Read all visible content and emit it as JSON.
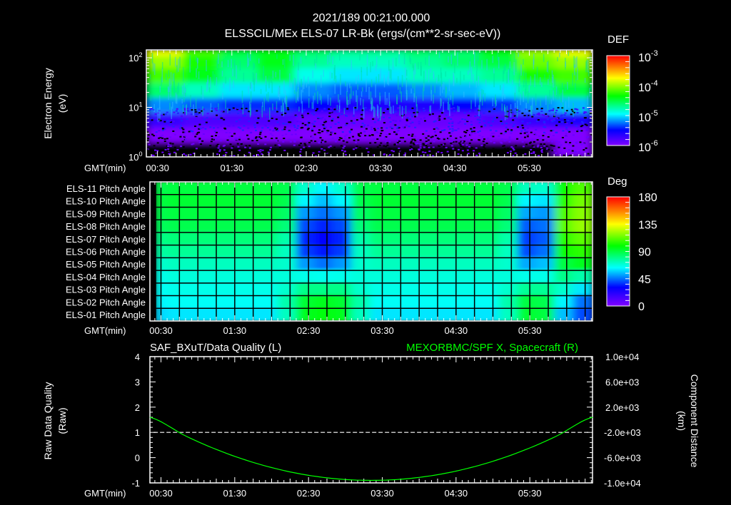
{
  "header": {
    "datetime": "2021/189 00:21:00.000",
    "title": "ELSSCIL/MEx ELS-07 LR-Bk  (ergs/(cm**2-sr-sec-eV))"
  },
  "time_axis": {
    "label": "GMT(min)",
    "start_minutes": 21,
    "end_minutes": 381,
    "tick_labels": [
      "00:30",
      "01:30",
      "02:30",
      "03:30",
      "04:30",
      "05:30"
    ],
    "tick_minutes": [
      30,
      90,
      150,
      210,
      270,
      330
    ]
  },
  "chart_data": [
    {
      "type": "heatmap",
      "name": "electron-spectrogram",
      "title": "ELSSCIL/MEx ELS-07 LR-Bk  (ergs/(cm**2-sr-sec-eV))",
      "ylabel": "Electron Energy",
      "ylabel_units": "(eV)",
      "yscale": "log",
      "ylim": [
        1,
        145
      ],
      "ytick_labels": [
        {
          "base": "10",
          "exp": "0",
          "value": 1
        },
        {
          "base": "10",
          "exp": "1",
          "value": 10
        },
        {
          "base": "10",
          "exp": "2",
          "value": 100
        }
      ],
      "energy_bin_edges_eV": [
        1,
        2,
        4,
        8,
        16,
        32,
        64,
        110,
        145
      ],
      "time_bin_start_minutes": [
        21,
        51,
        81,
        111,
        141,
        171,
        201,
        231,
        261,
        291,
        321,
        351
      ],
      "time_bin_width_minutes": 30,
      "log10_def": [
        [
          -6.5,
          -6.0,
          -5.7,
          -5.2,
          -4.6,
          -4.2,
          -4.0,
          -3.8
        ],
        [
          -6.5,
          -6.0,
          -5.8,
          -5.3,
          -4.8,
          -4.4,
          -4.3,
          -4.2
        ],
        [
          -6.5,
          -6.1,
          -5.8,
          -5.4,
          -5.0,
          -4.7,
          -4.6,
          -4.5
        ],
        [
          -6.5,
          -6.1,
          -5.8,
          -5.4,
          -5.0,
          -4.5,
          -4.4,
          -4.4
        ],
        [
          -6.6,
          -6.2,
          -5.9,
          -5.5,
          -5.2,
          -4.9,
          -4.7,
          -4.6
        ],
        [
          -6.6,
          -6.2,
          -5.9,
          -5.6,
          -5.3,
          -5.0,
          -4.8,
          -4.7
        ],
        [
          -6.6,
          -6.2,
          -5.9,
          -5.6,
          -5.3,
          -5.0,
          -4.8,
          -4.7
        ],
        [
          -6.6,
          -6.2,
          -5.9,
          -5.6,
          -5.2,
          -4.8,
          -4.7,
          -4.6
        ],
        [
          -6.6,
          -6.1,
          -5.9,
          -5.5,
          -5.1,
          -4.8,
          -4.6,
          -4.6
        ],
        [
          -6.5,
          -6.1,
          -5.8,
          -5.4,
          -5.0,
          -4.7,
          -4.5,
          -4.4
        ],
        [
          -6.4,
          -6.0,
          -5.7,
          -5.2,
          -4.7,
          -4.3,
          -4.1,
          -4.0
        ],
        [
          -6.3,
          -6.0,
          -5.6,
          -5.1,
          -4.5,
          -4.2,
          -4.0,
          -3.8
        ]
      ],
      "colorbar": {
        "label": "DEF",
        "log10_range": [
          -6,
          -3
        ],
        "tick_labels": [
          {
            "base": "10",
            "exp": "-3"
          },
          {
            "base": "10",
            "exp": "-4"
          },
          {
            "base": "10",
            "exp": "-5"
          },
          {
            "base": "10",
            "exp": "-6"
          }
        ]
      }
    },
    {
      "type": "heatmap",
      "name": "pitch-angle",
      "row_labels": [
        "ELS-11 Pitch Angle",
        "ELS-10 Pitch Angle",
        "ELS-09 Pitch Angle",
        "ELS-08 Pitch Angle",
        "ELS-07 Pitch Angle",
        "ELS-06 Pitch Angle",
        "ELS-05 Pitch Angle",
        "ELS-04 Pitch Angle",
        "ELS-03 Pitch Angle",
        "ELS-02 Pitch Angle",
        "ELS-01 Pitch Angle"
      ],
      "column_width_minutes": 15,
      "values_deg": [
        [
          88,
          90,
          90,
          90,
          90,
          90,
          90,
          88,
          70,
          62,
          70,
          88,
          90,
          90,
          90,
          90,
          90,
          90,
          90,
          88,
          72,
          70,
          100,
          110
        ],
        [
          90,
          92,
          92,
          92,
          92,
          92,
          92,
          88,
          62,
          55,
          62,
          88,
          92,
          92,
          92,
          92,
          92,
          92,
          92,
          88,
          62,
          60,
          105,
          115
        ],
        [
          88,
          90,
          90,
          90,
          90,
          90,
          90,
          85,
          50,
          45,
          50,
          85,
          90,
          90,
          90,
          90,
          90,
          90,
          90,
          85,
          52,
          50,
          110,
          118
        ],
        [
          86,
          88,
          88,
          88,
          88,
          88,
          88,
          82,
          40,
          35,
          40,
          82,
          88,
          88,
          88,
          88,
          88,
          88,
          88,
          82,
          42,
          45,
          112,
          120
        ],
        [
          80,
          82,
          82,
          82,
          82,
          82,
          82,
          75,
          35,
          30,
          35,
          75,
          82,
          82,
          82,
          82,
          82,
          82,
          82,
          75,
          38,
          42,
          105,
          112
        ],
        [
          76,
          78,
          78,
          78,
          78,
          78,
          78,
          72,
          38,
          33,
          38,
          72,
          78,
          78,
          78,
          78,
          78,
          78,
          78,
          72,
          40,
          45,
          100,
          105
        ],
        [
          70,
          72,
          72,
          72,
          72,
          72,
          72,
          70,
          50,
          45,
          50,
          70,
          72,
          72,
          72,
          72,
          72,
          72,
          72,
          70,
          52,
          55,
          90,
          95
        ],
        [
          66,
          68,
          68,
          68,
          68,
          68,
          68,
          68,
          66,
          65,
          66,
          68,
          68,
          68,
          68,
          68,
          68,
          68,
          68,
          68,
          66,
          66,
          80,
          75
        ],
        [
          64,
          66,
          66,
          66,
          66,
          66,
          66,
          70,
          80,
          80,
          80,
          70,
          66,
          66,
          66,
          66,
          66,
          66,
          66,
          70,
          78,
          78,
          70,
          60
        ],
        [
          62,
          64,
          64,
          64,
          64,
          64,
          64,
          75,
          92,
          95,
          92,
          75,
          64,
          64,
          64,
          64,
          64,
          64,
          64,
          75,
          90,
          88,
          62,
          45
        ],
        [
          58,
          60,
          60,
          60,
          60,
          60,
          60,
          72,
          95,
          98,
          95,
          72,
          60,
          60,
          60,
          60,
          60,
          60,
          60,
          72,
          92,
          90,
          55,
          40
        ]
      ],
      "colorbar": {
        "label": "Deg",
        "range": [
          0,
          180
        ],
        "tick_labels": [
          "180",
          "135",
          "90",
          "45",
          "0"
        ]
      }
    },
    {
      "type": "line",
      "name": "data-quality-and-position",
      "left_title": "SAF_BXuT/Data Quality (L)",
      "right_title": "MEXORBMC/SPF X, Spacecraft (R)",
      "ylabel_left": "Raw Data Quality",
      "ylabel_left_units": "(Raw)",
      "ylabel_right": "Component Distance",
      "ylabel_right_units": "(km)",
      "ylim_left": [
        -1,
        4
      ],
      "ytick_labels_left": [
        "4",
        "3",
        "2",
        "1",
        "0",
        "-1"
      ],
      "ylim_right": [
        -10000,
        10000
      ],
      "ytick_labels_right": [
        "1.0e+04",
        "6.0e+03",
        "2.0e+03",
        "-2.0e+03",
        "-6.0e+03",
        "-1.0e+04"
      ],
      "series": [
        {
          "name": "Data Quality",
          "axis": "left",
          "style": "dashed",
          "color": "#ffffff",
          "x_minutes": [
            24,
            378
          ],
          "y": [
            1,
            1
          ]
        },
        {
          "name": "SPF X Spacecraft",
          "axis": "right",
          "style": "solid",
          "color": "#00ff00",
          "x_minutes": [
            21,
            51,
            81,
            111,
            141,
            171,
            201,
            231,
            261,
            291,
            321,
            351,
            381
          ],
          "y": [
            400,
            -2656,
            -5156,
            -7100,
            -8489,
            -9322,
            -9600,
            -9322,
            -8489,
            -7100,
            -5156,
            -2656,
            400
          ]
        }
      ]
    }
  ]
}
